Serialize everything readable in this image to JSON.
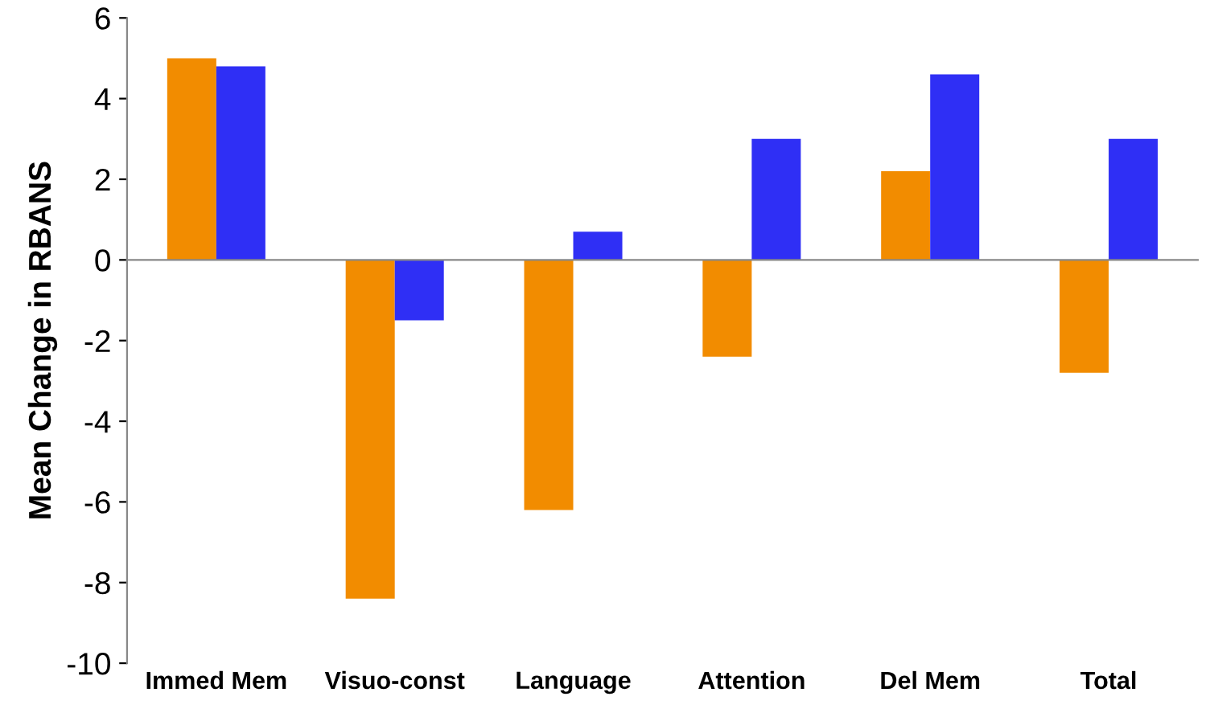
{
  "chart_data": {
    "type": "bar",
    "ylabel": "Mean Change in RBANS",
    "categories": [
      "Immed Mem",
      "Visuo-const",
      "Language",
      "Attention",
      "Del Mem",
      "Total"
    ],
    "series": [
      {
        "color": "#f28c00",
        "values": [
          5.0,
          -8.4,
          -6.2,
          -2.4,
          2.2,
          -2.8
        ]
      },
      {
        "color": "#2f2ff5",
        "values": [
          4.8,
          -1.5,
          0.7,
          3.0,
          4.6,
          3.0
        ]
      }
    ],
    "ylim": [
      -10,
      6
    ],
    "yticks": [
      -10,
      -8,
      -6,
      -4,
      -2,
      0,
      2,
      4,
      6
    ],
    "legend": false
  }
}
